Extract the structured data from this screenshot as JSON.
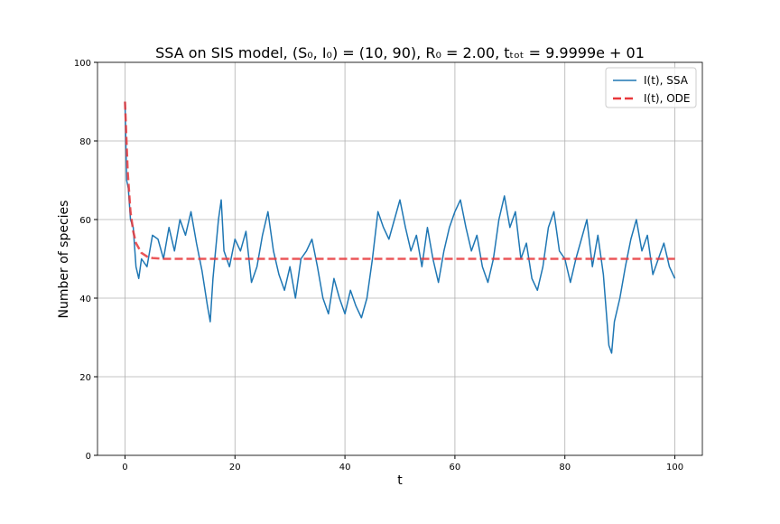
{
  "chart_data": {
    "type": "line",
    "title": "SSA on SIS model, (S₀, I₀) = (10, 90), R₀ = 2.00, tₜₒₜ = 9.9999e + 01",
    "xlabel": "t",
    "ylabel": "Number of species",
    "xlim": [
      -5,
      105
    ],
    "ylim": [
      0,
      100
    ],
    "xticks": [
      0,
      20,
      40,
      60,
      80,
      100
    ],
    "yticks": [
      0,
      20,
      40,
      60,
      80,
      100
    ],
    "grid": true,
    "legend": "upper right",
    "series": [
      {
        "name": "I(t), SSA",
        "color": "#1f77b4",
        "style": "solid",
        "x": [
          0,
          0.3,
          0.6,
          1,
          1.5,
          2,
          2.5,
          3,
          4,
          5,
          6,
          7,
          8,
          9,
          10,
          11,
          12,
          13,
          14,
          15,
          15.5,
          16,
          17,
          17.5,
          18,
          19,
          20,
          21,
          22,
          23,
          24,
          25,
          26,
          27,
          28,
          29,
          30,
          31,
          32,
          33,
          34,
          35,
          36,
          37,
          38,
          39,
          40,
          41,
          42,
          43,
          44,
          45,
          46,
          47,
          48,
          49,
          50,
          51,
          52,
          53,
          54,
          55,
          56,
          57,
          58,
          59,
          60,
          61,
          62,
          63,
          64,
          65,
          66,
          67,
          68,
          69,
          70,
          71,
          72,
          73,
          74,
          75,
          76,
          77,
          78,
          79,
          80,
          81,
          82,
          83,
          84,
          85,
          86,
          87,
          88,
          88.5,
          89,
          90,
          91,
          92,
          93,
          94,
          95,
          96,
          97,
          98,
          99,
          100
        ],
        "values": [
          90,
          70,
          68,
          60,
          58,
          48,
          45,
          50,
          48,
          56,
          55,
          50,
          58,
          52,
          60,
          56,
          62,
          54,
          47,
          38,
          34,
          45,
          60,
          65,
          52,
          48,
          55,
          52,
          57,
          44,
          48,
          56,
          62,
          52,
          46,
          42,
          48,
          40,
          50,
          52,
          55,
          48,
          40,
          36,
          45,
          40,
          36,
          42,
          38,
          35,
          40,
          50,
          62,
          58,
          55,
          60,
          65,
          58,
          52,
          56,
          48,
          58,
          50,
          44,
          52,
          58,
          62,
          65,
          58,
          52,
          56,
          48,
          44,
          50,
          60,
          66,
          58,
          62,
          50,
          54,
          45,
          42,
          48,
          58,
          62,
          52,
          50,
          44,
          50,
          55,
          60,
          48,
          56,
          46,
          28,
          26,
          34,
          40,
          48,
          55,
          60,
          52,
          56,
          46,
          50,
          54,
          48,
          45
        ]
      },
      {
        "name": "I(t), ODE",
        "color": "#e8383b",
        "style": "dashed",
        "x": [
          0,
          0.5,
          1,
          1.5,
          2,
          3,
          4,
          5,
          7,
          100
        ],
        "values": [
          90,
          72,
          62,
          57,
          54,
          51.5,
          50.6,
          50.2,
          50,
          50
        ]
      }
    ]
  }
}
